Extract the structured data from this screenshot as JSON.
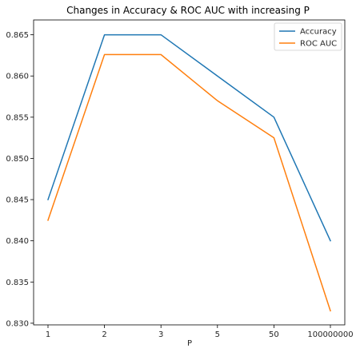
{
  "chart_data": {
    "type": "line",
    "title": "Changes in Accuracy & ROC AUC with increasing P",
    "xlabel": "P",
    "ylabel": "",
    "categories": [
      "1",
      "2",
      "3",
      "5",
      "50",
      "100000000"
    ],
    "ylim": [
      0.8298,
      0.8668
    ],
    "yticks": [
      "0.830",
      "0.835",
      "0.840",
      "0.845",
      "0.850",
      "0.855",
      "0.860",
      "0.865"
    ],
    "grid": false,
    "legend_position": "top-right",
    "series": [
      {
        "name": "Accuracy",
        "color": "#1f77b4",
        "values": [
          0.845,
          0.865,
          0.865,
          0.86,
          0.855,
          0.84
        ]
      },
      {
        "name": "ROC AUC",
        "color": "#ff7f0e",
        "values": [
          0.8425,
          0.8626,
          0.8626,
          0.857,
          0.8525,
          0.8315
        ]
      }
    ]
  }
}
